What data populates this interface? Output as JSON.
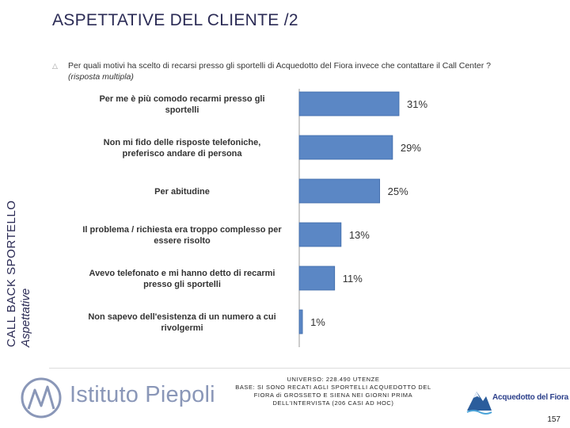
{
  "title": "ASPETTATIVE DEL CLIENTE /2",
  "side": {
    "main": "CALL BACK SPORTELLO",
    "sub": "Aspettative"
  },
  "question": {
    "text": "Per quali motivi ha scelto di recarsi presso gli sportelli di Acquedotto del Fiora invece che contattare il Call Center ?",
    "note": "(risposta multipla)"
  },
  "chart_data": {
    "type": "bar",
    "orientation": "horizontal",
    "categories": [
      [
        "Per me è più comodo recarmi presso gli",
        "sportelli"
      ],
      [
        "Non mi fido delle risposte telefoniche,",
        "preferisco andare di persona"
      ],
      [
        "Per abitudine"
      ],
      [
        "Il problema / richiesta era troppo complesso per",
        "essere risolto"
      ],
      [
        "Avevo telefonato e mi hanno detto di recarmi",
        "presso gli sportelli"
      ],
      [
        "Non sapevo dell'esistenza di un numero a cui",
        "rivolgermi"
      ]
    ],
    "values": [
      31,
      29,
      25,
      13,
      11,
      1
    ],
    "value_labels": [
      "31%",
      "29%",
      "25%",
      "13%",
      "11%",
      "1%"
    ],
    "bar_color": "#5b87c5",
    "grid": false,
    "legend": "none"
  },
  "footnote": [
    "UNIVERSO: 228.490 UTENZE",
    "BASE: SI SONO RECATI AGLI SPORTELLI ACQUEDOTTO DEL",
    "FIORA di GROSSETO E SIENA NEI GIORNI PRIMA",
    "DELL'INTERVISTA (206 CASI AD HOC)"
  ],
  "logo_left": "Istituto Piepoli",
  "logo_right": "Acquedotto del Fiora",
  "page_number": "157"
}
